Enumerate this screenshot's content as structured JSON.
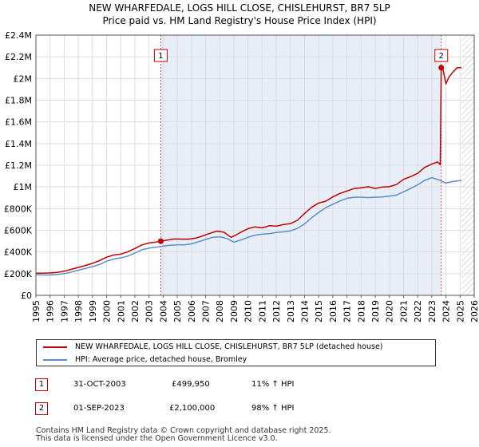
{
  "title_line1": "NEW WHARFEDALE, LOGS HILL CLOSE, CHISLEHURST, BR7 5LP",
  "title_line2": "Price paid vs. HM Land Registry's House Price Index (HPI)",
  "colors": {
    "property": "#c00000",
    "hpi": "#5b8fcc",
    "shade": "#e8eef8",
    "grid": "#dddddd"
  },
  "chart_data": {
    "type": "line",
    "title": "NEW WHARFEDALE, LOGS HILL CLOSE, CHISLEHURST, BR7 5LP — Price paid vs. HM Land Registry's House Price Index (HPI)",
    "xlabel": "",
    "ylabel": "",
    "xlim": [
      1995,
      2026
    ],
    "ylim": [
      0,
      2400000
    ],
    "yticks": [
      0,
      200000,
      400000,
      600000,
      800000,
      1000000,
      1200000,
      1400000,
      1600000,
      1800000,
      2000000,
      2200000,
      2400000
    ],
    "ytick_labels": [
      "£0",
      "£200K",
      "£400K",
      "£600K",
      "£800K",
      "£1M",
      "£1.2M",
      "£1.4M",
      "£1.6M",
      "£1.8M",
      "£2M",
      "£2.2M",
      "£2.4M"
    ],
    "xticks": [
      1995,
      1996,
      1997,
      1998,
      1999,
      2000,
      2001,
      2002,
      2003,
      2004,
      2005,
      2006,
      2007,
      2008,
      2009,
      2010,
      2011,
      2012,
      2013,
      2014,
      2015,
      2016,
      2017,
      2018,
      2019,
      2020,
      2021,
      2022,
      2023,
      2024,
      2025,
      2026
    ],
    "shaded_range": [
      2003.83,
      2023.67
    ],
    "future_hatch_from": 2025.1,
    "series": [
      {
        "name": "NEW WHARFEDALE, LOGS HILL CLOSE, CHISLEHURST, BR7 5LP (detached house)",
        "color": "#c00000",
        "x": [
          1995,
          1995.5,
          1996,
          1996.5,
          1997,
          1997.5,
          1998,
          1998.5,
          1999,
          1999.5,
          2000,
          2000.5,
          2001,
          2001.5,
          2002,
          2002.5,
          2003,
          2003.5,
          2003.83,
          2004.3,
          2004.8,
          2005.3,
          2005.8,
          2006.3,
          2006.8,
          2007.3,
          2007.8,
          2008.3,
          2008.8,
          2009.2,
          2009.6,
          2010,
          2010.5,
          2011,
          2011.5,
          2012,
          2012.5,
          2013,
          2013.5,
          2014,
          2014.5,
          2015,
          2015.5,
          2016,
          2016.5,
          2017,
          2017.5,
          2018,
          2018.5,
          2019,
          2019.5,
          2020,
          2020.5,
          2021,
          2021.5,
          2022,
          2022.5,
          2023,
          2023.4,
          2023.6,
          2023.67,
          2023.8,
          2024,
          2024.2,
          2024.5,
          2024.8,
          2025.1
        ],
        "values": [
          205000,
          205000,
          207000,
          212000,
          222000,
          240000,
          258000,
          275000,
          295000,
          320000,
          352000,
          372000,
          380000,
          402000,
          432000,
          465000,
          483000,
          492000,
          499950,
          510000,
          520000,
          518000,
          518000,
          528000,
          548000,
          572000,
          592000,
          582000,
          535000,
          560000,
          590000,
          615000,
          632000,
          622000,
          642000,
          638000,
          652000,
          662000,
          692000,
          755000,
          812000,
          852000,
          868000,
          908000,
          940000,
          962000,
          985000,
          992000,
          1002000,
          985000,
          1000000,
          1002000,
          1022000,
          1070000,
          1095000,
          1125000,
          1180000,
          1210000,
          1230000,
          1205000,
          2100000,
          2080000,
          1950000,
          2010000,
          2060000,
          2100000,
          2100000
        ]
      },
      {
        "name": "HPI: Average price, detached house, Bromley",
        "color": "#5b8fcc",
        "x": [
          1995,
          1995.5,
          1996,
          1996.5,
          1997,
          1997.5,
          1998,
          1998.5,
          1999,
          1999.5,
          2000,
          2000.5,
          2001,
          2001.5,
          2002,
          2002.5,
          2003,
          2003.5,
          2004,
          2004.5,
          2005,
          2005.5,
          2006,
          2006.5,
          2007,
          2007.5,
          2008,
          2008.5,
          2009,
          2009.5,
          2010,
          2010.5,
          2011,
          2011.5,
          2012,
          2012.5,
          2013,
          2013.5,
          2014,
          2014.5,
          2015,
          2015.5,
          2016,
          2016.5,
          2017,
          2017.5,
          2018,
          2018.5,
          2019,
          2019.5,
          2020,
          2020.5,
          2021,
          2021.5,
          2022,
          2022.5,
          2023,
          2023.5,
          2024,
          2024.5,
          2025.1
        ],
        "values": [
          190000,
          188000,
          188000,
          192000,
          200000,
          215000,
          232000,
          248000,
          265000,
          285000,
          315000,
          335000,
          345000,
          362000,
          390000,
          420000,
          435000,
          445000,
          455000,
          462000,
          466000,
          466000,
          475000,
          495000,
          515000,
          535000,
          540000,
          525000,
          490000,
          510000,
          535000,
          555000,
          565000,
          568000,
          580000,
          585000,
          595000,
          618000,
          660000,
          715000,
          765000,
          808000,
          840000,
          870000,
          895000,
          905000,
          905000,
          902000,
          905000,
          908000,
          915000,
          925000,
          955000,
          985000,
          1020000,
          1060000,
          1085000,
          1065000,
          1035000,
          1050000,
          1060000
        ]
      }
    ],
    "annotations": [
      {
        "label": "1",
        "x": 2003.83,
        "value": 499950
      },
      {
        "label": "2",
        "x": 2023.67,
        "value": 2100000
      }
    ]
  },
  "legend": {
    "property_label": "NEW WHARFEDALE, LOGS HILL CLOSE, CHISLEHURST, BR7 5LP (detached house)",
    "hpi_label": "HPI: Average price, detached house, Bromley"
  },
  "transactions": [
    {
      "num": "1",
      "date": "31-OCT-2003",
      "price": "£499,950",
      "hpi": "11% ↑ HPI"
    },
    {
      "num": "2",
      "date": "01-SEP-2023",
      "price": "£2,100,000",
      "hpi": "98% ↑ HPI"
    }
  ],
  "footer_line1": "Contains HM Land Registry data © Crown copyright and database right 2025.",
  "footer_line2": "This data is licensed under the Open Government Licence v3.0."
}
